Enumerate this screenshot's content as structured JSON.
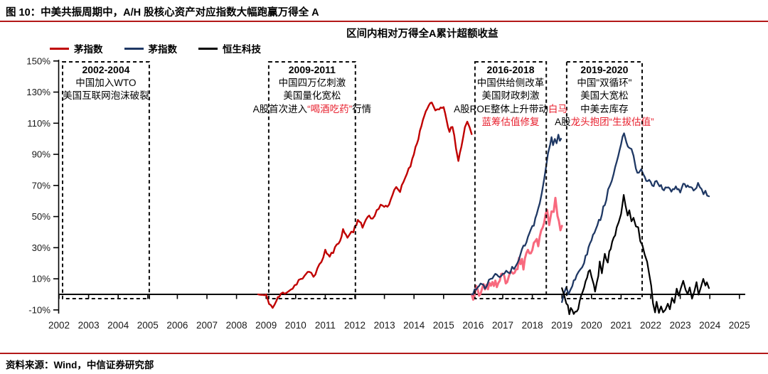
{
  "figure": {
    "title": "图 10：中美共振周期中，A/H 股核心资产对应指数大幅跑赢万得全 A",
    "source": "资料来源：Wind，中信证券研究部"
  },
  "chart_data": {
    "type": "line",
    "title": "区间内相对万得全A累计超额收益",
    "grid": false,
    "legend_position": "top-left",
    "legend": [
      {
        "label": "茅指数",
        "color": "#c00000"
      },
      {
        "label": "茅指数",
        "color": "#1f3864"
      },
      {
        "label": "恒生科技",
        "color": "#000000"
      }
    ],
    "y_axis": {
      "min": -10,
      "max": 150,
      "unit": "%",
      "ticks": [
        {
          "value": 150,
          "label": "150%"
        },
        {
          "value": 130,
          "label": "130%"
        },
        {
          "value": 110,
          "label": "110%"
        },
        {
          "value": 90,
          "label": "90%"
        },
        {
          "value": 70,
          "label": "70%"
        },
        {
          "value": 50,
          "label": "50%"
        },
        {
          "value": 30,
          "label": "30%"
        },
        {
          "value": 10,
          "label": "10%"
        },
        {
          "value": -10,
          "label": "-10%"
        }
      ]
    },
    "x_axis": {
      "ticks": [
        2002,
        2003,
        2004,
        2005,
        2006,
        2007,
        2008,
        2009,
        2010,
        2011,
        2012,
        2013,
        2014,
        2015,
        2016,
        2017,
        2018,
        2019,
        2020,
        2021,
        2022,
        2023,
        2024,
        2025
      ]
    },
    "series": [
      {
        "id": "mao-index-a-2009-2016",
        "color": "#c00000",
        "width": 2.4,
        "jitter": 1.4,
        "points": [
          [
            2008.73,
            0
          ],
          [
            2009.0,
            -1
          ],
          [
            2009.1,
            -5
          ],
          [
            2009.22,
            -9
          ],
          [
            2009.35,
            -4
          ],
          [
            2009.5,
            0
          ],
          [
            2009.7,
            2
          ],
          [
            2009.9,
            4
          ],
          [
            2010.1,
            9
          ],
          [
            2010.3,
            11
          ],
          [
            2010.46,
            15
          ],
          [
            2010.6,
            12
          ],
          [
            2010.8,
            18
          ],
          [
            2011.0,
            28
          ],
          [
            2011.15,
            24
          ],
          [
            2011.45,
            33
          ],
          [
            2011.6,
            41
          ],
          [
            2011.75,
            37
          ],
          [
            2011.95,
            41
          ],
          [
            2012.1,
            48
          ],
          [
            2012.26,
            43
          ],
          [
            2012.43,
            51
          ],
          [
            2012.6,
            48
          ],
          [
            2012.74,
            54
          ],
          [
            2012.94,
            58
          ],
          [
            2013.1,
            56
          ],
          [
            2013.27,
            64
          ],
          [
            2013.4,
            68
          ],
          [
            2013.53,
            66
          ],
          [
            2013.7,
            75
          ],
          [
            2013.82,
            81
          ],
          [
            2013.94,
            86
          ],
          [
            2014.05,
            95
          ],
          [
            2014.15,
            101
          ],
          [
            2014.25,
            108
          ],
          [
            2014.35,
            116
          ],
          [
            2014.45,
            119
          ],
          [
            2014.6,
            123
          ],
          [
            2014.72,
            118
          ],
          [
            2014.85,
            120
          ],
          [
            2015.0,
            119
          ],
          [
            2015.1,
            113
          ],
          [
            2015.2,
            104
          ],
          [
            2015.3,
            108
          ],
          [
            2015.42,
            94
          ],
          [
            2015.5,
            85
          ],
          [
            2015.6,
            96
          ],
          [
            2015.72,
            107
          ],
          [
            2015.8,
            111
          ],
          [
            2015.88,
            107
          ],
          [
            2015.95,
            103
          ]
        ]
      },
      {
        "id": "mao-index-a-2016-2019",
        "color": "#f8697e",
        "width": 3,
        "jitter": 3.0,
        "points": [
          [
            2015.95,
            0
          ],
          [
            2016.0,
            -3
          ],
          [
            2016.1,
            4
          ],
          [
            2016.2,
            -1
          ],
          [
            2016.35,
            7
          ],
          [
            2016.5,
            3
          ],
          [
            2016.65,
            9
          ],
          [
            2016.8,
            6
          ],
          [
            2016.95,
            12
          ],
          [
            2017.1,
            8
          ],
          [
            2017.25,
            15
          ],
          [
            2017.4,
            12
          ],
          [
            2017.55,
            22
          ],
          [
            2017.7,
            19
          ],
          [
            2017.85,
            29
          ],
          [
            2018.0,
            26
          ],
          [
            2018.1,
            36
          ],
          [
            2018.2,
            33
          ],
          [
            2018.3,
            43
          ],
          [
            2018.4,
            47
          ],
          [
            2018.5,
            53
          ],
          [
            2018.57,
            46
          ],
          [
            2018.65,
            56
          ],
          [
            2018.72,
            50
          ],
          [
            2018.78,
            60
          ],
          [
            2018.85,
            52
          ],
          [
            2018.9,
            47
          ],
          [
            2018.95,
            42
          ],
          [
            2019.0,
            44
          ]
        ]
      },
      {
        "id": "mao-index-h-2016-2019",
        "color": "#1f3864",
        "width": 2.3,
        "jitter": 1.5,
        "points": [
          [
            2015.95,
            0
          ],
          [
            2016.1,
            3
          ],
          [
            2016.25,
            7
          ],
          [
            2016.4,
            4
          ],
          [
            2016.6,
            10
          ],
          [
            2016.75,
            13
          ],
          [
            2016.9,
            10
          ],
          [
            2017.05,
            14
          ],
          [
            2017.25,
            15
          ],
          [
            2017.45,
            19
          ],
          [
            2017.6,
            26
          ],
          [
            2017.75,
            32
          ],
          [
            2017.9,
            39
          ],
          [
            2018.05,
            45
          ],
          [
            2018.15,
            51
          ],
          [
            2018.25,
            57
          ],
          [
            2018.32,
            64
          ],
          [
            2018.4,
            73
          ],
          [
            2018.47,
            83
          ],
          [
            2018.53,
            90
          ],
          [
            2018.6,
            97
          ],
          [
            2018.65,
            100
          ],
          [
            2018.7,
            96
          ],
          [
            2018.76,
            101
          ],
          [
            2018.82,
            98
          ],
          [
            2018.88,
            102
          ],
          [
            2018.93,
            99
          ],
          [
            2018.97,
            100
          ]
        ]
      },
      {
        "id": "mao-index-h-2019-2024",
        "color": "#1f3864",
        "width": 2.3,
        "jitter": 1.7,
        "points": [
          [
            2019.0,
            -5
          ],
          [
            2019.08,
            0
          ],
          [
            2019.15,
            3
          ],
          [
            2019.22,
            1
          ],
          [
            2019.35,
            7
          ],
          [
            2019.5,
            11
          ],
          [
            2019.62,
            15
          ],
          [
            2019.75,
            20
          ],
          [
            2019.85,
            27
          ],
          [
            2019.95,
            32
          ],
          [
            2020.05,
            37
          ],
          [
            2020.15,
            43
          ],
          [
            2020.3,
            49
          ],
          [
            2020.4,
            55
          ],
          [
            2020.5,
            62
          ],
          [
            2020.62,
            70
          ],
          [
            2020.75,
            78
          ],
          [
            2020.85,
            85
          ],
          [
            2020.95,
            92
          ],
          [
            2021.0,
            96
          ],
          [
            2021.05,
            100
          ],
          [
            2021.1,
            104
          ],
          [
            2021.18,
            96
          ],
          [
            2021.28,
            93
          ],
          [
            2021.35,
            94
          ],
          [
            2021.42,
            88
          ],
          [
            2021.5,
            80
          ],
          [
            2021.6,
            78
          ],
          [
            2021.68,
            80
          ],
          [
            2021.75,
            76
          ],
          [
            2021.85,
            72
          ],
          [
            2021.95,
            74
          ],
          [
            2022.05,
            69
          ],
          [
            2022.15,
            73
          ],
          [
            2022.3,
            70
          ],
          [
            2022.45,
            66
          ],
          [
            2022.55,
            69
          ],
          [
            2022.7,
            66
          ],
          [
            2022.85,
            70
          ],
          [
            2023.0,
            67
          ],
          [
            2023.15,
            71
          ],
          [
            2023.3,
            68
          ],
          [
            2023.45,
            67
          ],
          [
            2023.6,
            70
          ],
          [
            2023.72,
            66
          ],
          [
            2023.85,
            65
          ],
          [
            2023.97,
            63
          ]
        ]
      },
      {
        "id": "hang-seng-tech-2019-2024",
        "color": "#000000",
        "width": 2.2,
        "jitter": 2.2,
        "points": [
          [
            2019.0,
            4
          ],
          [
            2019.08,
            0
          ],
          [
            2019.15,
            -5
          ],
          [
            2019.25,
            -11
          ],
          [
            2019.35,
            -9
          ],
          [
            2019.45,
            -12
          ],
          [
            2019.55,
            -8
          ],
          [
            2019.65,
            -2
          ],
          [
            2019.75,
            4
          ],
          [
            2019.85,
            10
          ],
          [
            2019.95,
            16
          ],
          [
            2020.0,
            12
          ],
          [
            2020.08,
            5
          ],
          [
            2020.12,
            1
          ],
          [
            2020.18,
            7
          ],
          [
            2020.28,
            19
          ],
          [
            2020.35,
            15
          ],
          [
            2020.45,
            25
          ],
          [
            2020.55,
            21
          ],
          [
            2020.65,
            31
          ],
          [
            2020.75,
            37
          ],
          [
            2020.85,
            43
          ],
          [
            2020.92,
            47
          ],
          [
            2021.0,
            52
          ],
          [
            2021.05,
            57
          ],
          [
            2021.09,
            63
          ],
          [
            2021.15,
            57
          ],
          [
            2021.22,
            52
          ],
          [
            2021.28,
            55
          ],
          [
            2021.35,
            48
          ],
          [
            2021.42,
            51
          ],
          [
            2021.5,
            45
          ],
          [
            2021.58,
            41
          ],
          [
            2021.65,
            36
          ],
          [
            2021.72,
            31
          ],
          [
            2021.8,
            25
          ],
          [
            2021.88,
            19
          ],
          [
            2021.95,
            12
          ],
          [
            2022.02,
            5
          ],
          [
            2022.08,
            -4
          ],
          [
            2022.15,
            -11
          ],
          [
            2022.2,
            -6
          ],
          [
            2022.28,
            -12
          ],
          [
            2022.35,
            -8
          ],
          [
            2022.42,
            -13
          ],
          [
            2022.5,
            -9
          ],
          [
            2022.58,
            -4
          ],
          [
            2022.65,
            -8
          ],
          [
            2022.72,
            -2
          ],
          [
            2022.8,
            -6
          ],
          [
            2022.88,
            2
          ],
          [
            2022.95,
            -3
          ],
          [
            2023.02,
            4
          ],
          [
            2023.1,
            7
          ],
          [
            2023.18,
            4
          ],
          [
            2023.25,
            0
          ],
          [
            2023.32,
            3
          ],
          [
            2023.4,
            -2
          ],
          [
            2023.48,
            3
          ],
          [
            2023.55,
            6
          ],
          [
            2023.62,
            2
          ],
          [
            2023.7,
            6
          ],
          [
            2023.78,
            9
          ],
          [
            2023.85,
            4
          ],
          [
            2023.9,
            7
          ],
          [
            2023.97,
            4
          ]
        ]
      }
    ],
    "annotations": [
      {
        "range": "2002-2004",
        "x0": 2002.12,
        "x1": 2005.05,
        "lines": [
          [
            {
              "t": "中国加入WTO"
            }
          ],
          [
            {
              "t": "美国互联网泡沫破裂"
            }
          ]
        ]
      },
      {
        "range": "2009-2011",
        "x0": 2009.09,
        "x1": 2012.02,
        "lines": [
          [
            {
              "t": "中国四万亿刺激"
            }
          ],
          [
            {
              "t": "美国量化宽松"
            }
          ],
          [
            {
              "t": "A股首次进入"
            },
            {
              "t": "“喝酒吃药”",
              "red": true
            },
            {
              "t": "行情"
            }
          ]
        ]
      },
      {
        "range": "2016-2018",
        "x0": 2016.06,
        "x1": 2018.47,
        "lines": [
          [
            {
              "t": "中国供给侧改革"
            }
          ],
          [
            {
              "t": "美国财政刺激"
            }
          ],
          [
            {
              "t": "A股ROE整体上升带动"
            },
            {
              "t": "白马",
              "red": true
            }
          ],
          [
            {
              "t": "蓝筹估值修复",
              "red": true
            }
          ]
        ]
      },
      {
        "range": "2019-2020",
        "x0": 2019.16,
        "x1": 2021.71,
        "lines": [
          [
            {
              "t": "中国\"双循环\""
            }
          ],
          [
            {
              "t": "美国大宽松"
            }
          ],
          [
            {
              "t": "中美去库存"
            }
          ],
          [
            {
              "t": "A股"
            },
            {
              "t": "龙头抱团“生拔估值”",
              "red": true
            }
          ]
        ]
      }
    ]
  }
}
